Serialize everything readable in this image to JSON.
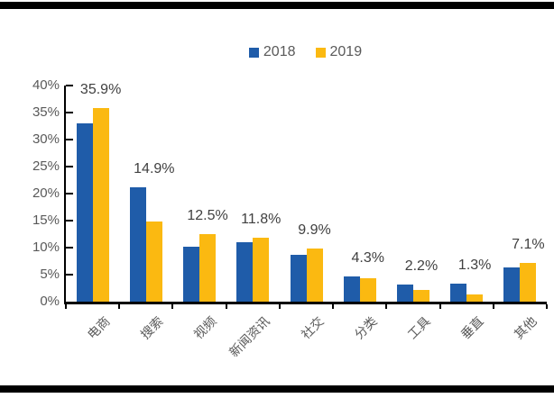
{
  "page": {
    "background": "#FFFFFF",
    "border_color": "#000000"
  },
  "chart_data": {
    "type": "bar",
    "title": "",
    "xlabel": "",
    "ylabel": "",
    "categories": [
      "电商",
      "搜索",
      "视频",
      "新闻资讯",
      "社交",
      "分类",
      "工具",
      "垂直",
      "其他"
    ],
    "series": [
      {
        "name": "2018",
        "color": "#1F5CA9",
        "values": [
          33.0,
          21.2,
          10.2,
          11.0,
          8.6,
          4.6,
          3.1,
          3.4,
          6.3
        ]
      },
      {
        "name": "2019",
        "color": "#FBB911",
        "values": [
          35.9,
          14.9,
          12.5,
          11.8,
          9.9,
          4.3,
          2.2,
          1.3,
          7.1
        ]
      }
    ],
    "data_labels": [
      "35.9%",
      "14.9%",
      "12.5%",
      "11.8%",
      "9.9%",
      "4.3%",
      "2.2%",
      "1.3%",
      "7.1%"
    ],
    "data_labels_series": "2019",
    "ylim": [
      0,
      40
    ],
    "ytick_step": 5,
    "ytick_labels": [
      "0%",
      "5%",
      "10%",
      "15%",
      "20%",
      "25%",
      "30%",
      "35%",
      "40%"
    ],
    "grid": false,
    "legend_position": "top-center",
    "axis_color": "#000000",
    "tick_text_color": "#595959",
    "data_label_color": "#404040"
  }
}
